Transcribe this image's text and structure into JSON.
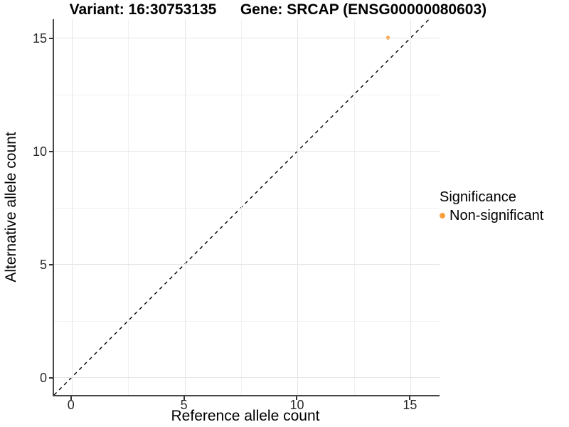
{
  "titles": {
    "variant": "Variant: 16:30753135",
    "gene": "Gene: SRCAP (ENSG00000080603)"
  },
  "chart_data": {
    "type": "scatter",
    "xlabel": "Reference allele count",
    "ylabel": "Alternative allele count",
    "x_ticks": [
      0,
      5,
      10,
      15
    ],
    "y_ticks": [
      0,
      5,
      10,
      15
    ],
    "x_minor_ticks": [
      2.5,
      7.5,
      12.5
    ],
    "y_minor_ticks": [
      2.5,
      7.5,
      12.5
    ],
    "xlim": [
      -0.78,
      16.28
    ],
    "ylim": [
      -0.78,
      15.82
    ],
    "grid": "on",
    "points": [
      {
        "x": 14,
        "y": 15,
        "series": "Non-significant"
      }
    ],
    "identity_line": {
      "equation": "y = x",
      "style": "dashed",
      "color": "#000000",
      "x1": -0.78,
      "y1": -0.78,
      "x2": 15.82,
      "y2": 15.82
    },
    "legend": {
      "position": "right",
      "title": "Significance",
      "entries": [
        {
          "label": "Non-significant",
          "color": "#F9A03C"
        }
      ]
    },
    "colors": {
      "point": "#F9A03C",
      "grid_major": "#e5e5e5",
      "grid_minor": "#f0f0f0",
      "axis_line": "#474747",
      "tick_mark": "#333333",
      "tick_label": "#2b2b2b"
    }
  }
}
